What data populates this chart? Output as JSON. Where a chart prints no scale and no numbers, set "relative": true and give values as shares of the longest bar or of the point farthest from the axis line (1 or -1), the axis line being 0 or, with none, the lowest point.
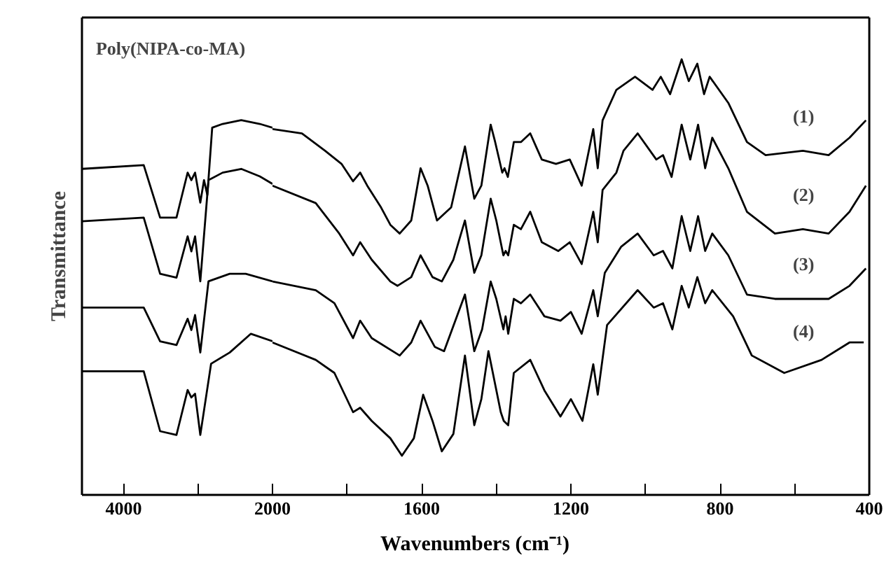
{
  "chart_data": [
    {
      "type": "line",
      "title": "Poly(NIPA-co-MA)",
      "ylabel": "Transmittance",
      "relative": true,
      "xlim": [
        4560,
        2000
      ],
      "xticks": [
        4000,
        {
          "value": 3000,
          "label": null
        },
        2000
      ],
      "series": [
        {
          "color": "#000000",
          "x": [
            4560,
            3730,
            3510,
            3290,
            3140,
            3090,
            3040,
            2970,
            2920,
            2875,
            2810,
            2670,
            2420,
            2170,
            2000
          ],
          "values": [
            0.87,
            0.88,
            0.74,
            0.74,
            0.86,
            0.84,
            0.86,
            0.78,
            0.84,
            0.8,
            0.98,
            0.99,
            1.0,
            0.99,
            0.98
          ]
        },
        {
          "color": "#000000",
          "x": [
            4560,
            3730,
            3510,
            3290,
            3140,
            3090,
            3040,
            2970,
            2860,
            2670,
            2420,
            2170,
            2000
          ],
          "values": [
            0.73,
            0.74,
            0.59,
            0.58,
            0.69,
            0.65,
            0.69,
            0.57,
            0.84,
            0.86,
            0.87,
            0.85,
            0.83
          ]
        },
        {
          "color": "#000000",
          "x": [
            4560,
            3730,
            3510,
            3290,
            3140,
            3090,
            3040,
            2970,
            2860,
            2575,
            2360,
            2000
          ],
          "values": [
            0.5,
            0.5,
            0.41,
            0.4,
            0.47,
            0.44,
            0.48,
            0.38,
            0.57,
            0.59,
            0.59,
            0.57
          ]
        },
        {
          "color": "#000000",
          "x": [
            4560,
            3730,
            3510,
            3290,
            3140,
            3090,
            3040,
            2970,
            2825,
            2575,
            2290,
            2000
          ],
          "values": [
            0.33,
            0.33,
            0.17,
            0.16,
            0.28,
            0.26,
            0.27,
            0.16,
            0.35,
            0.38,
            0.43,
            0.41
          ]
        }
      ]
    },
    {
      "type": "line",
      "xlabel": "Wavenumbers (cm⁻¹)",
      "relative": true,
      "xlim": [
        2000,
        400
      ],
      "xticks": [
        {
          "value": 2000,
          "label": null
        },
        {
          "value": 1800,
          "label": null
        },
        1600,
        {
          "value": 1400,
          "label": null
        },
        1200,
        {
          "value": 1000,
          "label": null
        },
        800,
        {
          "value": 600,
          "label": null
        },
        400
      ],
      "series": [
        {
          "name": "(1)",
          "color": "#000000",
          "x": [
            2000,
            1921,
            1859,
            1815,
            1784,
            1765,
            1746,
            1709,
            1684,
            1659,
            1628,
            1603,
            1584,
            1559,
            1521,
            1484,
            1459,
            1440,
            1415,
            1403,
            1384,
            1378,
            1369,
            1353,
            1334,
            1309,
            1278,
            1240,
            1203,
            1171,
            1140,
            1128,
            1115,
            1078,
            1028,
            981,
            959,
            934,
            903,
            884,
            861,
            843,
            828,
            778,
            728,
            678,
            578,
            509,
            453,
            409
          ],
          "values": [
            0.84,
            0.83,
            0.79,
            0.76,
            0.72,
            0.74,
            0.71,
            0.66,
            0.62,
            0.6,
            0.63,
            0.75,
            0.71,
            0.63,
            0.66,
            0.8,
            0.68,
            0.71,
            0.85,
            0.81,
            0.74,
            0.75,
            0.73,
            0.81,
            0.81,
            0.83,
            0.77,
            0.76,
            0.77,
            0.71,
            0.84,
            0.75,
            0.86,
            0.93,
            0.96,
            0.93,
            0.96,
            0.92,
            1.0,
            0.95,
            0.99,
            0.92,
            0.96,
            0.9,
            0.81,
            0.78,
            0.79,
            0.78,
            0.82,
            0.86
          ]
        },
        {
          "name": "(2)",
          "color": "#000000",
          "x": [
            2000,
            1884,
            1821,
            1784,
            1765,
            1734,
            1684,
            1665,
            1628,
            1603,
            1571,
            1546,
            1515,
            1484,
            1459,
            1440,
            1415,
            1400,
            1381,
            1375,
            1368,
            1353,
            1334,
            1309,
            1278,
            1234,
            1203,
            1171,
            1140,
            1128,
            1115,
            1078,
            1059,
            1021,
            971,
            953,
            930,
            903,
            880,
            859,
            840,
            821,
            778,
            728,
            653,
            578,
            509,
            453,
            409
          ],
          "values": [
            0.71,
            0.67,
            0.6,
            0.55,
            0.58,
            0.54,
            0.49,
            0.48,
            0.5,
            0.55,
            0.5,
            0.49,
            0.54,
            0.63,
            0.51,
            0.55,
            0.68,
            0.63,
            0.55,
            0.56,
            0.55,
            0.62,
            0.61,
            0.65,
            0.58,
            0.56,
            0.58,
            0.53,
            0.65,
            0.58,
            0.7,
            0.74,
            0.79,
            0.83,
            0.77,
            0.78,
            0.73,
            0.85,
            0.77,
            0.85,
            0.75,
            0.82,
            0.75,
            0.65,
            0.6,
            0.61,
            0.6,
            0.65,
            0.71
          ]
        },
        {
          "name": "(3)",
          "color": "#000000",
          "x": [
            2000,
            1884,
            1834,
            1784,
            1765,
            1734,
            1659,
            1628,
            1603,
            1565,
            1540,
            1484,
            1459,
            1438,
            1415,
            1400,
            1381,
            1375,
            1368,
            1353,
            1334,
            1309,
            1271,
            1228,
            1200,
            1171,
            1140,
            1128,
            1109,
            1065,
            1021,
            978,
            953,
            928,
            903,
            880,
            859,
            840,
            821,
            778,
            728,
            653,
            578,
            509,
            453,
            409
          ],
          "values": [
            0.49,
            0.47,
            0.44,
            0.36,
            0.4,
            0.36,
            0.32,
            0.35,
            0.4,
            0.34,
            0.33,
            0.46,
            0.33,
            0.38,
            0.49,
            0.45,
            0.38,
            0.41,
            0.37,
            0.45,
            0.44,
            0.46,
            0.41,
            0.4,
            0.42,
            0.37,
            0.47,
            0.41,
            0.51,
            0.57,
            0.6,
            0.55,
            0.56,
            0.52,
            0.64,
            0.56,
            0.64,
            0.56,
            0.6,
            0.55,
            0.46,
            0.45,
            0.45,
            0.45,
            0.48,
            0.52
          ]
        },
        {
          "name": "(4)",
          "color": "#000000",
          "x": [
            2000,
            1884,
            1834,
            1784,
            1765,
            1734,
            1684,
            1653,
            1621,
            1596,
            1571,
            1546,
            1515,
            1484,
            1459,
            1440,
            1421,
            1388,
            1380,
            1368,
            1353,
            1309,
            1271,
            1228,
            1200,
            1169,
            1140,
            1128,
            1103,
            1021,
            978,
            953,
            928,
            903,
            884,
            861,
            840,
            821,
            765,
            715,
            628,
            528,
            453,
            415
          ],
          "values": [
            0.35,
            0.31,
            0.28,
            0.19,
            0.2,
            0.17,
            0.13,
            0.09,
            0.13,
            0.23,
            0.17,
            0.1,
            0.14,
            0.32,
            0.16,
            0.22,
            0.33,
            0.19,
            0.17,
            0.16,
            0.28,
            0.31,
            0.24,
            0.18,
            0.22,
            0.17,
            0.3,
            0.23,
            0.39,
            0.47,
            0.43,
            0.44,
            0.38,
            0.48,
            0.43,
            0.5,
            0.44,
            0.47,
            0.41,
            0.32,
            0.28,
            0.31,
            0.35,
            0.35
          ]
        }
      ]
    }
  ]
}
